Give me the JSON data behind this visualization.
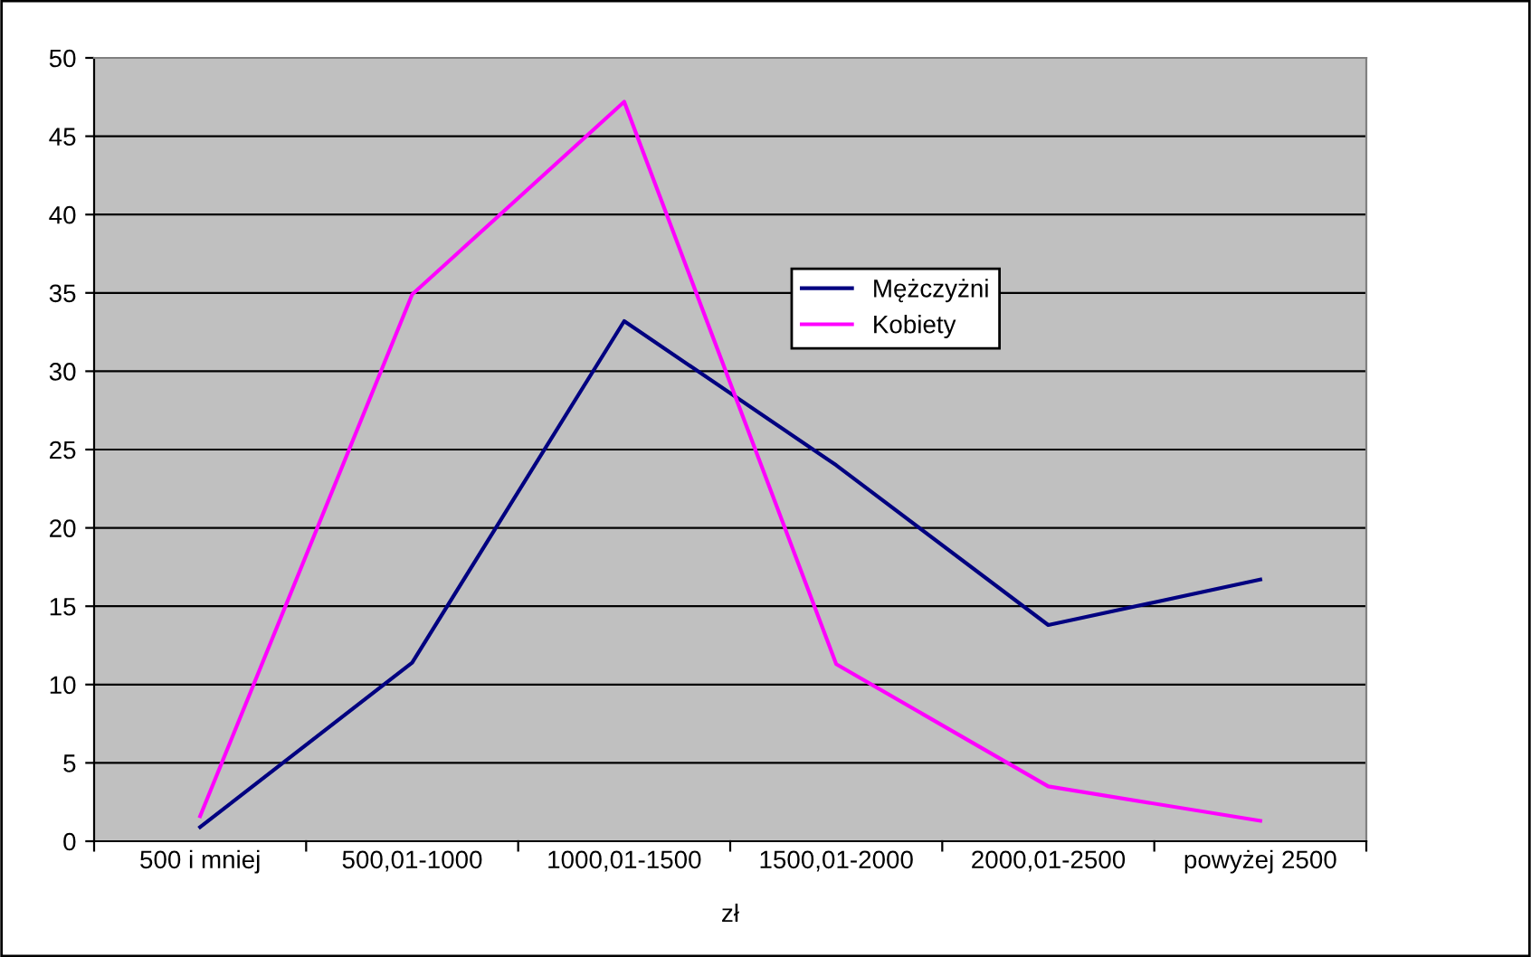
{
  "chart_data": {
    "type": "line",
    "xlabel": "zł",
    "categories": [
      "500 i mniej",
      "500,01-1000",
      "1000,01-1500",
      "1500,01-2000",
      "2000,01-2500",
      "powyżej 2500"
    ],
    "series": [
      {
        "name": "Mężczyżni",
        "color": "#000080",
        "values": [
          0.9,
          11.4,
          33.2,
          24.0,
          13.8,
          16.7
        ]
      },
      {
        "name": "Kobiety",
        "color": "#ff00ff",
        "values": [
          1.6,
          34.9,
          47.2,
          11.3,
          3.5,
          1.3
        ]
      }
    ],
    "ylim": [
      0,
      50
    ],
    "yticks": [
      0,
      5,
      10,
      15,
      20,
      25,
      30,
      35,
      40,
      45,
      50
    ],
    "grid": "y",
    "legend": "center",
    "marker": "none",
    "line_style": "solid"
  }
}
